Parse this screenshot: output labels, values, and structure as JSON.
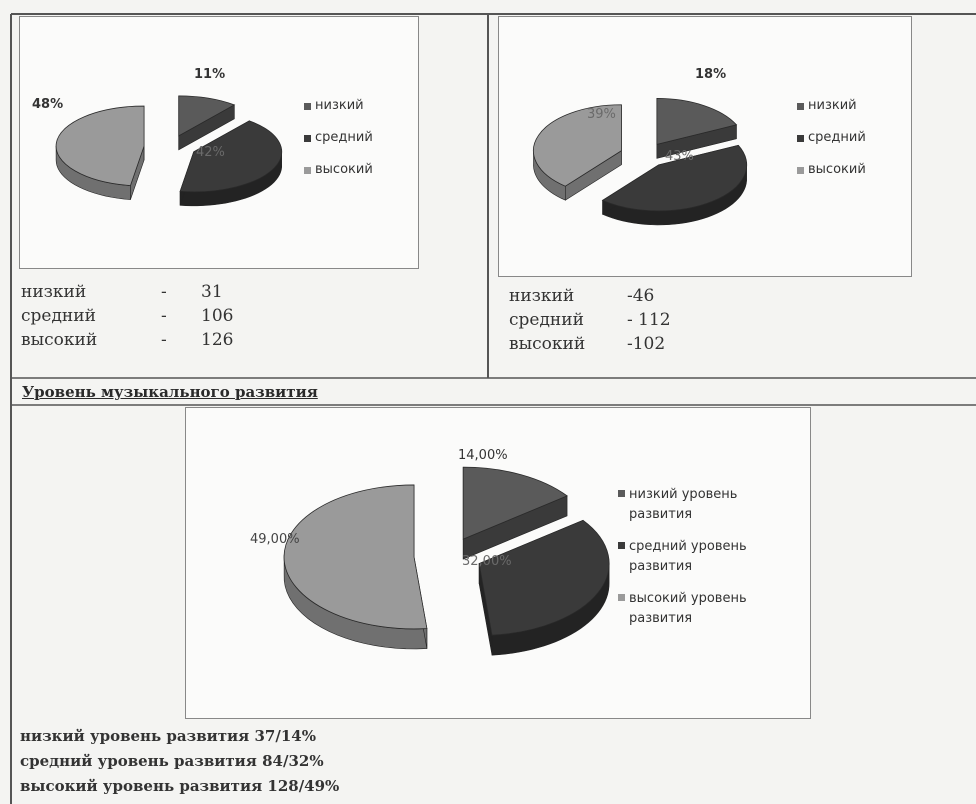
{
  "colors": {
    "low": "#5a5a5a",
    "mid": "#3a3a3a",
    "high": "#9a9a9a"
  },
  "chart_data": [
    {
      "type": "pie",
      "title": "",
      "categories": [
        "низкий",
        "средний",
        "высокий"
      ],
      "values": [
        11,
        42,
        48
      ],
      "labels": [
        "11%",
        "42%",
        "48%"
      ]
    },
    {
      "type": "pie",
      "title": "",
      "categories": [
        "низкий",
        "средний",
        "высокий"
      ],
      "values": [
        18,
        43,
        39
      ],
      "labels": [
        "18%",
        "43%",
        "39%"
      ]
    },
    {
      "type": "pie",
      "title": "Уровень музыкального развития",
      "categories": [
        "низкий уровень развития",
        "средний уровень развития",
        "высокий уровень развития"
      ],
      "values": [
        14,
        32,
        49
      ],
      "labels": [
        "14,00%",
        "32,00%",
        "49,00%"
      ]
    }
  ],
  "left_stats": [
    {
      "label": "низкий",
      "dash": "-",
      "value": "31"
    },
    {
      "label": "средний",
      "dash": "-",
      "value": "106"
    },
    {
      "label": "высокий",
      "dash": "-",
      "value": "126"
    }
  ],
  "right_stats": [
    {
      "label": "низкий",
      "value": "-46"
    },
    {
      "label": "средний",
      "value": "- 112"
    },
    {
      "label": "высокий",
      "value": "-102"
    }
  ],
  "section_title": "Уровень музыкального развития",
  "bottom_stats": [
    "низкий уровень развития   37/14%",
    "средний уровень развития 84/32%",
    "высокий уровень развития  128/49%"
  ]
}
